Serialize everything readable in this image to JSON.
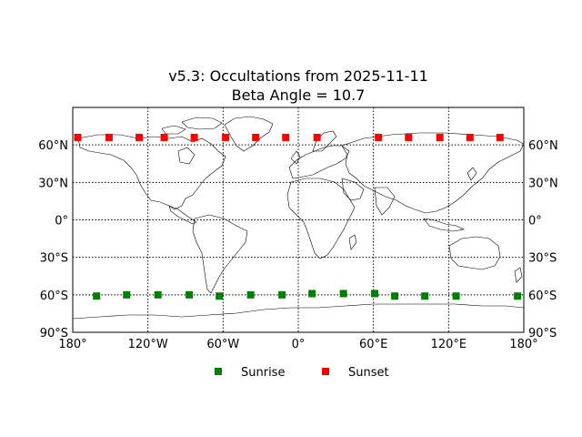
{
  "chart_data": {
    "type": "scatter",
    "title_line1": "v5.3: Occultations from 2025-11-11",
    "title_line2": "Beta Angle = 10.7",
    "xlim": [
      -180,
      180
    ],
    "ylim": [
      -90,
      90
    ],
    "grid": true,
    "legend_position": "bottom-center",
    "x_ticks": [
      {
        "value": -180,
        "label": "180°"
      },
      {
        "value": -120,
        "label": "120°W"
      },
      {
        "value": -60,
        "label": "60°W"
      },
      {
        "value": 0,
        "label": "0°"
      },
      {
        "value": 60,
        "label": "60°E"
      },
      {
        "value": 120,
        "label": "120°E"
      },
      {
        "value": 180,
        "label": "180°"
      }
    ],
    "y_ticks": [
      {
        "value": 60,
        "label": "60°N"
      },
      {
        "value": 30,
        "label": "30°N"
      },
      {
        "value": 0,
        "label": "0°"
      },
      {
        "value": -30,
        "label": "30°S"
      },
      {
        "value": -60,
        "label": "60°S"
      },
      {
        "value": -90,
        "label": "90°S"
      }
    ],
    "series": [
      {
        "name": "Sunrise",
        "color": "#008000",
        "marker": "square",
        "points": [
          [
            -161,
            -61
          ],
          [
            -137,
            -60
          ],
          [
            -112,
            -60
          ],
          [
            -87,
            -60
          ],
          [
            -63,
            -61
          ],
          [
            -38,
            -60
          ],
          [
            -13,
            -60
          ],
          [
            11,
            -59
          ],
          [
            36,
            -59
          ],
          [
            61,
            -59
          ],
          [
            77,
            -61
          ],
          [
            101,
            -61
          ],
          [
            126,
            -61
          ],
          [
            175,
            -61
          ]
        ]
      },
      {
        "name": "Sunset",
        "color": "#ff0000",
        "marker": "square",
        "points": [
          [
            -176,
            66
          ],
          [
            -151,
            66
          ],
          [
            -127,
            66
          ],
          [
            -107,
            66
          ],
          [
            -83,
            66
          ],
          [
            -58,
            66
          ],
          [
            -34,
            66
          ],
          [
            -10,
            66
          ],
          [
            15,
            66
          ],
          [
            64,
            66
          ],
          [
            88,
            66
          ],
          [
            113,
            66
          ],
          [
            137,
            66
          ],
          [
            161,
            66
          ]
        ]
      }
    ]
  },
  "colors": {
    "coastline": "#000000",
    "background": "#ffffff"
  }
}
